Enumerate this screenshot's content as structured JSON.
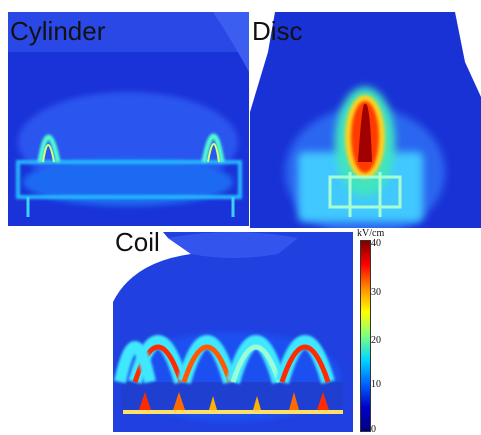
{
  "panels": {
    "cylinder": {
      "label": "Cylinder"
    },
    "disc": {
      "label": "Disc"
    },
    "coil": {
      "label": "Coil"
    }
  },
  "colorbar": {
    "unit": "kV/cm",
    "ticks": [
      "40",
      "30",
      "20",
      "10",
      "0"
    ],
    "colors": [
      "#7f0000",
      "#ff0000",
      "#ff8c00",
      "#ffff00",
      "#7fff7f",
      "#00d7ff",
      "#0064ff",
      "#0000c8",
      "#000080"
    ]
  }
}
